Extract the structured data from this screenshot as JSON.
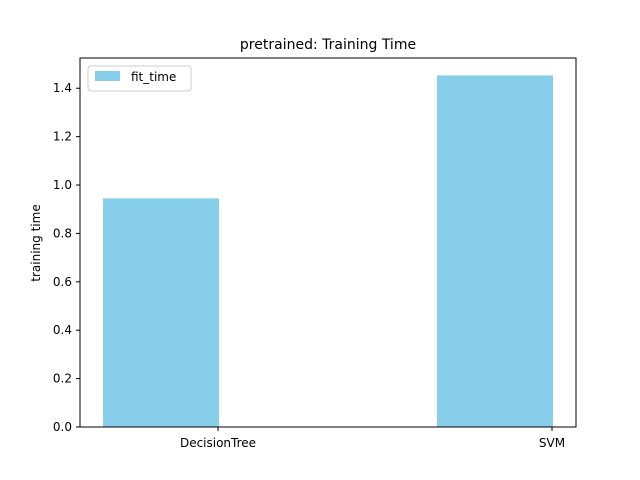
{
  "chart_data": {
    "type": "bar",
    "title": "pretrained: Training Time",
    "xlabel": "",
    "ylabel": "training time",
    "categories": [
      "DecisionTree",
      "SVM"
    ],
    "series": [
      {
        "name": "fit_time",
        "values": [
          0.945,
          1.453
        ],
        "color": "#87ceeb"
      }
    ],
    "ylim": [
      0,
      1.525
    ],
    "yticks": [
      0.0,
      0.2,
      0.4,
      0.6,
      0.8,
      1.0,
      1.2,
      1.4
    ],
    "ytick_labels": [
      "0.0",
      "0.2",
      "0.4",
      "0.6",
      "0.8",
      "1.0",
      "1.2",
      "1.4"
    ],
    "grid": false,
    "legend_position": "top-left"
  }
}
